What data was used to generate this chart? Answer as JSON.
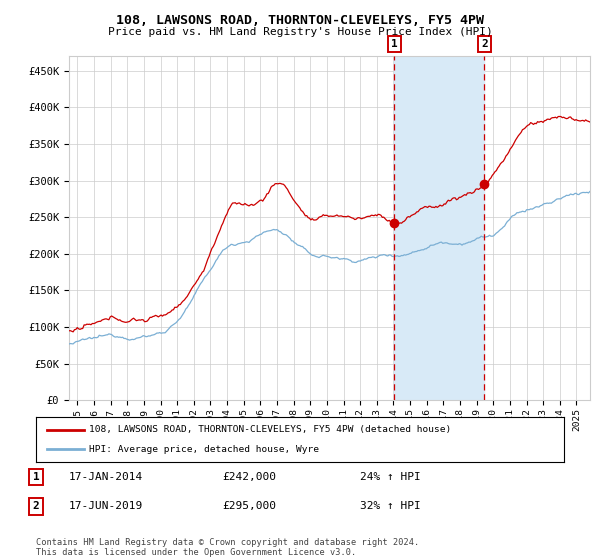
{
  "title": "108, LAWSONS ROAD, THORNTON-CLEVELEYS, FY5 4PW",
  "subtitle": "Price paid vs. HM Land Registry's House Price Index (HPI)",
  "legend_line1": "108, LAWSONS ROAD, THORNTON-CLEVELEYS, FY5 4PW (detached house)",
  "legend_line2": "HPI: Average price, detached house, Wyre",
  "annotation1_date": "17-JAN-2014",
  "annotation1_price": "£242,000",
  "annotation1_hpi": "24% ↑ HPI",
  "annotation2_date": "17-JUN-2019",
  "annotation2_price": "£295,000",
  "annotation2_hpi": "32% ↑ HPI",
  "footer": "Contains HM Land Registry data © Crown copyright and database right 2024.\nThis data is licensed under the Open Government Licence v3.0.",
  "sale1_year": 2014.04,
  "sale2_year": 2019.46,
  "sale1_value": 242000,
  "sale2_value": 295000,
  "hpi_color": "#7bafd4",
  "property_color": "#cc0000",
  "shade_color": "#d8eaf7",
  "dashed_color": "#cc0000",
  "background_color": "#ffffff",
  "grid_color": "#cccccc",
  "ylim": [
    0,
    470000
  ],
  "xlim_start": 1994.5,
  "xlim_end": 2025.8,
  "y_ticks": [
    0,
    50000,
    100000,
    150000,
    200000,
    250000,
    300000,
    350000,
    400000,
    450000
  ],
  "y_labels": [
    "£0",
    "£50K",
    "£100K",
    "£150K",
    "£200K",
    "£250K",
    "£300K",
    "£350K",
    "£400K",
    "£450K"
  ]
}
